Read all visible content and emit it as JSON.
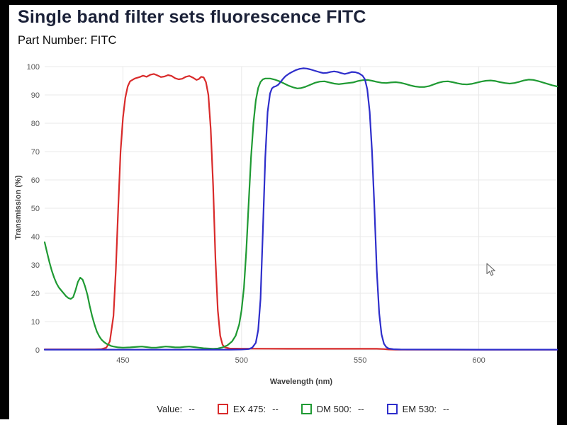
{
  "page": {
    "title": "Single band filter sets fluorescence FITC",
    "subtitle": "Part Number: FITC"
  },
  "chart_data": {
    "type": "line",
    "title": "Single band filter sets fluorescence FITC",
    "xlabel": "Wavelength (nm)",
    "ylabel": "Transmission (%)",
    "xlim": [
      417,
      633
    ],
    "ylim": [
      0,
      100
    ],
    "x_ticks": [
      450,
      500,
      550,
      600
    ],
    "y_ticks": [
      0,
      10,
      20,
      30,
      40,
      50,
      60,
      70,
      80,
      90,
      100
    ],
    "grid": true,
    "grid_color": "#e8e8e8",
    "tick_color": "#575757",
    "legend_position": "bottom",
    "series": [
      {
        "name": "EX 475",
        "color": "#d92b2b",
        "points": [
          [
            417,
            0.2
          ],
          [
            438,
            0.2
          ],
          [
            441,
            0.3
          ],
          [
            443,
            0.8
          ],
          [
            444.5,
            3
          ],
          [
            446,
            12
          ],
          [
            447,
            28
          ],
          [
            448,
            50
          ],
          [
            449,
            70
          ],
          [
            450,
            82
          ],
          [
            451,
            89
          ],
          [
            452,
            93
          ],
          [
            453,
            94.8
          ],
          [
            455,
            95.8
          ],
          [
            457,
            96.3
          ],
          [
            458.5,
            96.8
          ],
          [
            460,
            96.4
          ],
          [
            461.5,
            97.1
          ],
          [
            463,
            97.4
          ],
          [
            464.5,
            96.9
          ],
          [
            466,
            96.3
          ],
          [
            467.5,
            96.5
          ],
          [
            469,
            97
          ],
          [
            470.5,
            96.7
          ],
          [
            472,
            95.9
          ],
          [
            473.5,
            95.5
          ],
          [
            475,
            95.7
          ],
          [
            476.5,
            96.4
          ],
          [
            478,
            96.7
          ],
          [
            479.5,
            96.1
          ],
          [
            481,
            95.3
          ],
          [
            482,
            95.6
          ],
          [
            483,
            96.4
          ],
          [
            484,
            96.2
          ],
          [
            485,
            94.5
          ],
          [
            486,
            90
          ],
          [
            487,
            78
          ],
          [
            488,
            58
          ],
          [
            489,
            32
          ],
          [
            490,
            14
          ],
          [
            491,
            5
          ],
          [
            492,
            1.8
          ],
          [
            493,
            0.9
          ],
          [
            495,
            0.5
          ],
          [
            500,
            0.45
          ],
          [
            520,
            0.4
          ],
          [
            545,
            0.4
          ],
          [
            557,
            0.4
          ],
          [
            560,
            0.3
          ],
          [
            562,
            0.15
          ],
          [
            565,
            0.1
          ],
          [
            600,
            0.1
          ],
          [
            633,
            0.1
          ]
        ]
      },
      {
        "name": "DM 500",
        "color": "#1f9a33",
        "points": [
          [
            417,
            38
          ],
          [
            418,
            34.5
          ],
          [
            419,
            31
          ],
          [
            420,
            28
          ],
          [
            421,
            25.5
          ],
          [
            422,
            23.5
          ],
          [
            423,
            22
          ],
          [
            424,
            21
          ],
          [
            425,
            20
          ],
          [
            426,
            19
          ],
          [
            427,
            18.3
          ],
          [
            428,
            18
          ],
          [
            429,
            18.6
          ],
          [
            430,
            21
          ],
          [
            431,
            24
          ],
          [
            432,
            25.5
          ],
          [
            433,
            24.8
          ],
          [
            434,
            22.5
          ],
          [
            435,
            19.5
          ],
          [
            436,
            15.5
          ],
          [
            437,
            12
          ],
          [
            438,
            9
          ],
          [
            439,
            6.5
          ],
          [
            440,
            4.8
          ],
          [
            441,
            3.6
          ],
          [
            442,
            2.8
          ],
          [
            443,
            2.2
          ],
          [
            444,
            1.8
          ],
          [
            445,
            1.4
          ],
          [
            446,
            1.2
          ],
          [
            448,
            0.9
          ],
          [
            450,
            0.8
          ],
          [
            453,
            0.9
          ],
          [
            456,
            1.1
          ],
          [
            458,
            1.2
          ],
          [
            460,
            1
          ],
          [
            462,
            0.8
          ],
          [
            464,
            0.8
          ],
          [
            466,
            1
          ],
          [
            468,
            1.2
          ],
          [
            470,
            1.1
          ],
          [
            472,
            0.9
          ],
          [
            474,
            0.9
          ],
          [
            476,
            1.1
          ],
          [
            478,
            1.2
          ],
          [
            480,
            1
          ],
          [
            482,
            0.8
          ],
          [
            484,
            0.6
          ],
          [
            486,
            0.5
          ],
          [
            488,
            0.4
          ],
          [
            490,
            0.5
          ],
          [
            492,
            0.9
          ],
          [
            494,
            1.6
          ],
          [
            496,
            3
          ],
          [
            497.5,
            5
          ],
          [
            499,
            9
          ],
          [
            500,
            14
          ],
          [
            501,
            22
          ],
          [
            502,
            35
          ],
          [
            503,
            52
          ],
          [
            504,
            68
          ],
          [
            505,
            80
          ],
          [
            506,
            88
          ],
          [
            507,
            92.5
          ],
          [
            508,
            94.6
          ],
          [
            509,
            95.5
          ],
          [
            510,
            95.8
          ],
          [
            512,
            95.8
          ],
          [
            514,
            95.4
          ],
          [
            516,
            94.8
          ],
          [
            518,
            94
          ],
          [
            520,
            93.2
          ],
          [
            522,
            92.6
          ],
          [
            523.5,
            92.3
          ],
          [
            525,
            92.4
          ],
          [
            527,
            92.9
          ],
          [
            529,
            93.6
          ],
          [
            531,
            94.3
          ],
          [
            533,
            94.7
          ],
          [
            535,
            94.8
          ],
          [
            537,
            94.4
          ],
          [
            539,
            94
          ],
          [
            541,
            93.8
          ],
          [
            543,
            94
          ],
          [
            545,
            94.2
          ],
          [
            547,
            94.4
          ],
          [
            549,
            94.9
          ],
          [
            551,
            95.2
          ],
          [
            553,
            95.3
          ],
          [
            555,
            95
          ],
          [
            557,
            94.6
          ],
          [
            559,
            94.3
          ],
          [
            561,
            94.2
          ],
          [
            563,
            94.4
          ],
          [
            565,
            94.5
          ],
          [
            567,
            94.3
          ],
          [
            569,
            93.9
          ],
          [
            571,
            93.4
          ],
          [
            573,
            93
          ],
          [
            575,
            92.8
          ],
          [
            577,
            92.8
          ],
          [
            579,
            93.1
          ],
          [
            581,
            93.7
          ],
          [
            583,
            94.3
          ],
          [
            585,
            94.7
          ],
          [
            587,
            94.8
          ],
          [
            589,
            94.5
          ],
          [
            591,
            94.1
          ],
          [
            593,
            93.8
          ],
          [
            595,
            93.7
          ],
          [
            597,
            93.9
          ],
          [
            599,
            94.3
          ],
          [
            601,
            94.7
          ],
          [
            603,
            95
          ],
          [
            605,
            95.1
          ],
          [
            607,
            94.9
          ],
          [
            609,
            94.5
          ],
          [
            611,
            94.2
          ],
          [
            613,
            94
          ],
          [
            615,
            94.2
          ],
          [
            617,
            94.6
          ],
          [
            619,
            95.1
          ],
          [
            621,
            95.4
          ],
          [
            623,
            95.3
          ],
          [
            625,
            94.9
          ],
          [
            627,
            94.4
          ],
          [
            629,
            93.9
          ],
          [
            631,
            93.4
          ],
          [
            633,
            93
          ]
        ]
      },
      {
        "name": "EM 530",
        "color": "#2e2ecb",
        "points": [
          [
            417,
            0.1
          ],
          [
            495,
            0.1
          ],
          [
            500,
            0.15
          ],
          [
            503,
            0.3
          ],
          [
            504.5,
            0.8
          ],
          [
            506,
            2.5
          ],
          [
            507,
            7
          ],
          [
            508,
            18
          ],
          [
            509,
            42
          ],
          [
            510,
            68
          ],
          [
            511,
            84
          ],
          [
            512,
            90.5
          ],
          [
            512.8,
            92.3
          ],
          [
            513.5,
            92.8
          ],
          [
            514.5,
            93.1
          ],
          [
            515.5,
            93.6
          ],
          [
            516.5,
            94.6
          ],
          [
            517.5,
            95.7
          ],
          [
            518.5,
            96.6
          ],
          [
            520,
            97.5
          ],
          [
            521.5,
            98.2
          ],
          [
            523,
            98.8
          ],
          [
            524.5,
            99.2
          ],
          [
            526,
            99.4
          ],
          [
            527.5,
            99.3
          ],
          [
            529,
            99
          ],
          [
            531,
            98.5
          ],
          [
            533,
            98
          ],
          [
            534.5,
            97.7
          ],
          [
            536,
            97.8
          ],
          [
            537.5,
            98.1
          ],
          [
            539,
            98.3
          ],
          [
            540.5,
            98.1
          ],
          [
            542,
            97.7
          ],
          [
            543.5,
            97.4
          ],
          [
            545,
            97.7
          ],
          [
            546.5,
            98.1
          ],
          [
            548,
            98
          ],
          [
            549.5,
            97.6
          ],
          [
            551,
            96.8
          ],
          [
            552,
            95.5
          ],
          [
            553,
            92
          ],
          [
            554,
            84
          ],
          [
            555,
            70
          ],
          [
            556,
            50
          ],
          [
            557,
            28
          ],
          [
            558,
            13
          ],
          [
            559,
            5.5
          ],
          [
            560,
            2.2
          ],
          [
            561,
            1
          ],
          [
            562,
            0.5
          ],
          [
            564,
            0.25
          ],
          [
            567,
            0.15
          ],
          [
            600,
            0.1
          ],
          [
            633,
            0.1
          ]
        ]
      }
    ]
  },
  "legend": {
    "value_label": "Value:",
    "value": "--",
    "items": [
      {
        "label": "EX 475:",
        "value": "--",
        "color": "#d92b2b"
      },
      {
        "label": "DM 500:",
        "value": "--",
        "color": "#1f9a33"
      },
      {
        "label": "EM 530:",
        "value": "--",
        "color": "#2e2ecb"
      }
    ]
  }
}
